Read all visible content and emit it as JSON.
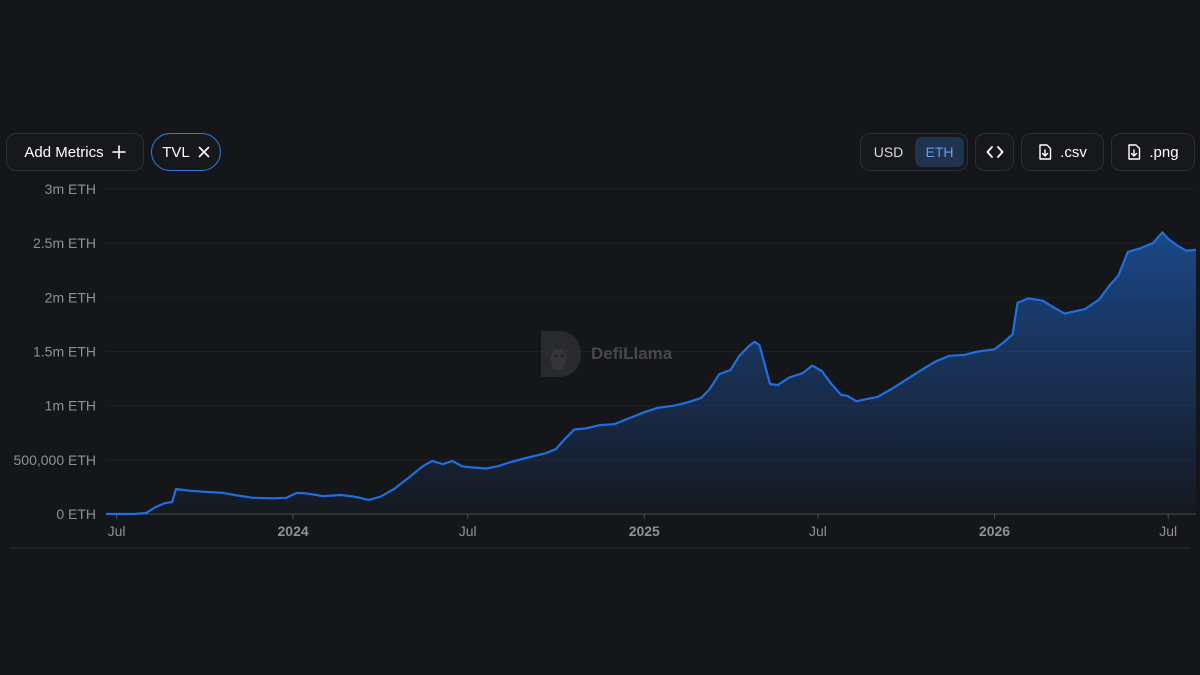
{
  "toolbar": {
    "add_metrics_label": "Add Metrics",
    "tvl_chip_label": "TVL",
    "currency_options": [
      "USD",
      "ETH"
    ],
    "currency_selected": "ETH",
    "csv_label": ".csv",
    "png_label": ".png"
  },
  "watermark": {
    "text": "DefiLlama"
  },
  "icons": {
    "add": "plus-icon",
    "remove": "close-icon",
    "embed": "code-icon",
    "download": "download-file-icon"
  },
  "colors": {
    "background": "#151619",
    "line": "#1f6fe0",
    "accent": "#2f7de1",
    "axis_text": "#8d9097"
  },
  "chart_data": {
    "type": "area",
    "series": [
      {
        "points": [
          [
            "2023-06-20",
            0
          ],
          [
            "2023-07-01",
            0
          ],
          [
            "2023-07-20",
            0
          ],
          [
            "2023-08-01",
            10000
          ],
          [
            "2023-08-10",
            60000
          ],
          [
            "2023-08-20",
            100000
          ],
          [
            "2023-08-28",
            110000
          ],
          [
            "2023-09-01",
            230000
          ],
          [
            "2023-09-15",
            215000
          ],
          [
            "2023-10-01",
            205000
          ],
          [
            "2023-10-20",
            195000
          ],
          [
            "2023-11-01",
            175000
          ],
          [
            "2023-11-20",
            150000
          ],
          [
            "2023-12-10",
            145000
          ],
          [
            "2023-12-25",
            150000
          ],
          [
            "2024-01-05",
            195000
          ],
          [
            "2024-01-15",
            190000
          ],
          [
            "2024-02-01",
            165000
          ],
          [
            "2024-02-20",
            175000
          ],
          [
            "2024-03-05",
            160000
          ],
          [
            "2024-03-20",
            130000
          ],
          [
            "2024-04-01",
            160000
          ],
          [
            "2024-04-15",
            230000
          ],
          [
            "2024-05-01",
            340000
          ],
          [
            "2024-05-15",
            440000
          ],
          [
            "2024-05-25",
            490000
          ],
          [
            "2024-06-05",
            460000
          ],
          [
            "2024-06-15",
            490000
          ],
          [
            "2024-06-25",
            440000
          ],
          [
            "2024-07-05",
            430000
          ],
          [
            "2024-07-20",
            420000
          ],
          [
            "2024-08-01",
            440000
          ],
          [
            "2024-08-15",
            480000
          ],
          [
            "2024-09-01",
            520000
          ],
          [
            "2024-09-20",
            560000
          ],
          [
            "2024-10-01",
            600000
          ],
          [
            "2024-10-10",
            690000
          ],
          [
            "2024-10-20",
            780000
          ],
          [
            "2024-11-01",
            790000
          ],
          [
            "2024-11-15",
            820000
          ],
          [
            "2024-12-01",
            830000
          ],
          [
            "2024-12-15",
            880000
          ],
          [
            "2025-01-01",
            940000
          ],
          [
            "2025-01-15",
            980000
          ],
          [
            "2025-02-01",
            1000000
          ],
          [
            "2025-02-15",
            1030000
          ],
          [
            "2025-03-01",
            1070000
          ],
          [
            "2025-03-10",
            1150000
          ],
          [
            "2025-03-20",
            1290000
          ],
          [
            "2025-04-01",
            1330000
          ],
          [
            "2025-04-10",
            1460000
          ],
          [
            "2025-04-20",
            1550000
          ],
          [
            "2025-04-26",
            1590000
          ],
          [
            "2025-05-01",
            1560000
          ],
          [
            "2025-05-06",
            1400000
          ],
          [
            "2025-05-12",
            1200000
          ],
          [
            "2025-05-20",
            1190000
          ],
          [
            "2025-06-01",
            1260000
          ],
          [
            "2025-06-15",
            1300000
          ],
          [
            "2025-06-25",
            1370000
          ],
          [
            "2025-07-05",
            1320000
          ],
          [
            "2025-07-15",
            1200000
          ],
          [
            "2025-07-25",
            1100000
          ],
          [
            "2025-08-01",
            1090000
          ],
          [
            "2025-08-10",
            1040000
          ],
          [
            "2025-08-20",
            1060000
          ],
          [
            "2025-09-01",
            1080000
          ],
          [
            "2025-09-15",
            1150000
          ],
          [
            "2025-10-01",
            1240000
          ],
          [
            "2025-10-15",
            1320000
          ],
          [
            "2025-11-01",
            1410000
          ],
          [
            "2025-11-15",
            1460000
          ],
          [
            "2025-12-01",
            1470000
          ],
          [
            "2025-12-15",
            1500000
          ],
          [
            "2026-01-01",
            1520000
          ],
          [
            "2026-01-10",
            1580000
          ],
          [
            "2026-01-20",
            1660000
          ],
          [
            "2026-01-25",
            1950000
          ],
          [
            "2026-02-05",
            1990000
          ],
          [
            "2026-02-20",
            1970000
          ],
          [
            "2026-03-05",
            1900000
          ],
          [
            "2026-03-15",
            1850000
          ],
          [
            "2026-03-25",
            1870000
          ],
          [
            "2026-04-05",
            1890000
          ],
          [
            "2026-04-20",
            1980000
          ],
          [
            "2026-05-01",
            2110000
          ],
          [
            "2026-05-10",
            2200000
          ],
          [
            "2026-05-20",
            2420000
          ],
          [
            "2026-06-01",
            2450000
          ],
          [
            "2026-06-15",
            2500000
          ],
          [
            "2026-06-25",
            2600000
          ],
          [
            "2026-07-01",
            2540000
          ],
          [
            "2026-07-10",
            2480000
          ],
          [
            "2026-07-20",
            2430000
          ],
          [
            "2026-07-30",
            2440000
          ]
        ]
      }
    ],
    "y_ticks": [
      {
        "value": 0,
        "label": "0 ETH"
      },
      {
        "value": 500000,
        "label": "500,000 ETH"
      },
      {
        "value": 1000000,
        "label": "1m ETH"
      },
      {
        "value": 1500000,
        "label": "1.5m ETH"
      },
      {
        "value": 2000000,
        "label": "2m ETH"
      },
      {
        "value": 2500000,
        "label": "2.5m ETH"
      },
      {
        "value": 3000000,
        "label": "3m ETH"
      }
    ],
    "x_ticks": [
      {
        "date": "2023-07-01",
        "label": "Jul",
        "bold": false
      },
      {
        "date": "2024-01-01",
        "label": "2024",
        "bold": true
      },
      {
        "date": "2024-07-01",
        "label": "Jul",
        "bold": false
      },
      {
        "date": "2025-01-01",
        "label": "2025",
        "bold": true
      },
      {
        "date": "2025-07-01",
        "label": "Jul",
        "bold": false
      },
      {
        "date": "2026-01-01",
        "label": "2026",
        "bold": true
      },
      {
        "date": "2026-07-01",
        "label": "Jul",
        "bold": false
      }
    ],
    "xlim": [
      "2023-06-20",
      "2026-07-30"
    ],
    "ylim": [
      0,
      3000000
    ],
    "grid": true
  }
}
